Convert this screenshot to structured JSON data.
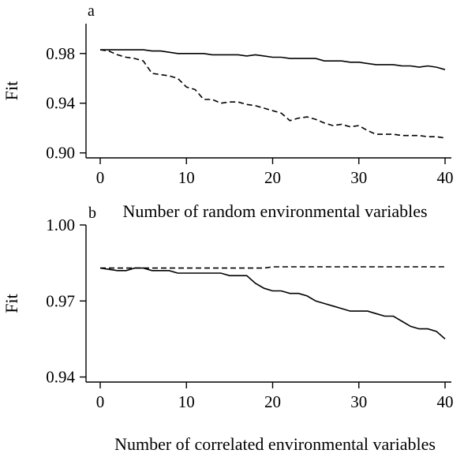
{
  "chart_data": [
    {
      "type": "line",
      "panel_label": "a",
      "xlabel": "Number of random environmental variables",
      "ylabel": "Fit",
      "xlim": [
        0,
        40
      ],
      "ylim": [
        0.896,
        1.004
      ],
      "xticks": [
        0,
        10,
        20,
        30,
        40
      ],
      "yticks": [
        0.9,
        0.94,
        0.98
      ],
      "ytick_labels": [
        "0.90",
        "0.94",
        "0.98"
      ],
      "series": [
        {
          "style": "solid",
          "x": [
            0,
            1,
            2,
            3,
            4,
            5,
            6,
            7,
            8,
            9,
            10,
            11,
            12,
            13,
            14,
            15,
            16,
            17,
            18,
            19,
            20,
            21,
            22,
            23,
            24,
            25,
            26,
            27,
            28,
            29,
            30,
            31,
            32,
            33,
            34,
            35,
            36,
            37,
            38,
            39,
            40
          ],
          "y": [
            0.983,
            0.983,
            0.983,
            0.983,
            0.983,
            0.983,
            0.982,
            0.982,
            0.981,
            0.98,
            0.98,
            0.98,
            0.98,
            0.979,
            0.979,
            0.979,
            0.979,
            0.978,
            0.979,
            0.978,
            0.977,
            0.977,
            0.976,
            0.976,
            0.976,
            0.976,
            0.974,
            0.974,
            0.974,
            0.973,
            0.973,
            0.972,
            0.971,
            0.971,
            0.971,
            0.97,
            0.97,
            0.969,
            0.97,
            0.969,
            0.967
          ]
        },
        {
          "style": "dashed",
          "x": [
            0,
            1,
            2,
            3,
            4,
            5,
            6,
            7,
            8,
            9,
            10,
            11,
            12,
            13,
            14,
            15,
            16,
            17,
            18,
            19,
            20,
            21,
            22,
            23,
            24,
            25,
            26,
            27,
            28,
            29,
            30,
            31,
            32,
            33,
            34,
            35,
            36,
            37,
            38,
            39,
            40
          ],
          "y": [
            0.983,
            0.982,
            0.979,
            0.977,
            0.976,
            0.974,
            0.964,
            0.963,
            0.962,
            0.96,
            0.953,
            0.951,
            0.943,
            0.943,
            0.94,
            0.941,
            0.941,
            0.939,
            0.938,
            0.936,
            0.934,
            0.932,
            0.926,
            0.928,
            0.929,
            0.927,
            0.924,
            0.922,
            0.923,
            0.921,
            0.922,
            0.918,
            0.915,
            0.915,
            0.915,
            0.914,
            0.914,
            0.914,
            0.913,
            0.913,
            0.912
          ]
        }
      ]
    },
    {
      "type": "line",
      "panel_label": "b",
      "xlabel": "Number of correlated environmental variables",
      "ylabel": "Fit",
      "xlim": [
        -1.5,
        41.5
      ],
      "ylim": [
        0.938,
        1.0
      ],
      "xticks": [
        0,
        10,
        20,
        30,
        40
      ],
      "yticks": [
        0.94,
        0.97,
        1.0
      ],
      "ytick_labels": [
        "0.94",
        "0.97",
        "1.00"
      ],
      "series": [
        {
          "style": "solid",
          "x": [
            0,
            1,
            2,
            3,
            4,
            5,
            6,
            7,
            8,
            9,
            10,
            11,
            12,
            13,
            14,
            15,
            16,
            17,
            18,
            19,
            20,
            21,
            22,
            23,
            24,
            25,
            26,
            27,
            28,
            29,
            30,
            31,
            32,
            33,
            34,
            35,
            36,
            37,
            38,
            39,
            40
          ],
          "y": [
            0.983,
            0.9825,
            0.982,
            0.982,
            0.983,
            0.983,
            0.982,
            0.982,
            0.982,
            0.981,
            0.981,
            0.981,
            0.981,
            0.981,
            0.981,
            0.98,
            0.98,
            0.98,
            0.977,
            0.975,
            0.974,
            0.974,
            0.973,
            0.973,
            0.972,
            0.97,
            0.969,
            0.968,
            0.967,
            0.966,
            0.966,
            0.966,
            0.965,
            0.964,
            0.964,
            0.962,
            0.96,
            0.959,
            0.959,
            0.958,
            0.955
          ]
        },
        {
          "style": "dashed",
          "x": [
            0,
            1,
            2,
            3,
            4,
            5,
            6,
            7,
            8,
            9,
            10,
            11,
            12,
            13,
            14,
            15,
            16,
            17,
            18,
            19,
            20,
            21,
            22,
            23,
            24,
            25,
            26,
            27,
            28,
            29,
            30,
            31,
            32,
            33,
            34,
            35,
            36,
            37,
            38,
            39,
            40
          ],
          "y": [
            0.983,
            0.983,
            0.983,
            0.983,
            0.983,
            0.983,
            0.983,
            0.983,
            0.983,
            0.983,
            0.983,
            0.983,
            0.983,
            0.983,
            0.983,
            0.983,
            0.983,
            0.983,
            0.983,
            0.983,
            0.9835,
            0.9835,
            0.9835,
            0.9835,
            0.9835,
            0.9835,
            0.9835,
            0.9835,
            0.9835,
            0.9835,
            0.9835,
            0.9835,
            0.9835,
            0.9835,
            0.9835,
            0.9835,
            0.9835,
            0.9835,
            0.9835,
            0.9835,
            0.9835
          ]
        }
      ]
    }
  ]
}
